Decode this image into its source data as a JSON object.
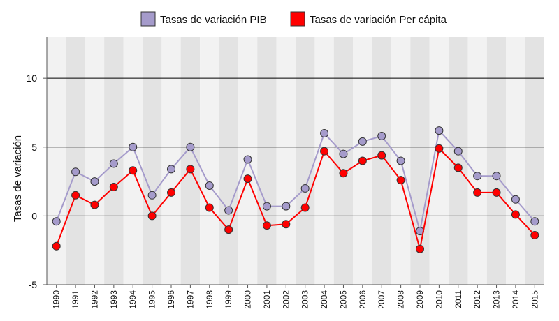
{
  "chart_data": {
    "type": "line",
    "title": "",
    "xlabel": "",
    "ylabel": "Tasas de variación",
    "ylim": [
      -5,
      13
    ],
    "yticks": [
      -5,
      0,
      5,
      10
    ],
    "grid": true,
    "legend_position": "top-center",
    "categories": [
      "1990",
      "1991",
      "1992",
      "1993",
      "1994",
      "1995",
      "1996",
      "1997",
      "1998",
      "1999",
      "2000",
      "2001",
      "2002",
      "2003",
      "2004",
      "2005",
      "2006",
      "2007",
      "2008",
      "2009",
      "2010",
      "2011",
      "2012",
      "2013",
      "2014",
      "2015"
    ],
    "series": [
      {
        "name": "Tasas de variación PIB",
        "color": "#a59bcb",
        "values": [
          -0.4,
          3.2,
          2.5,
          3.8,
          5.0,
          1.5,
          3.4,
          5.0,
          2.2,
          0.4,
          4.1,
          0.7,
          0.7,
          2.0,
          6.0,
          4.5,
          5.4,
          5.8,
          4.0,
          -1.1,
          6.2,
          4.7,
          2.9,
          2.9,
          1.2,
          -0.4
        ]
      },
      {
        "name": "Tasas de variación Per cápita",
        "color": "#ff0000",
        "values": [
          -2.2,
          1.5,
          0.8,
          2.1,
          3.3,
          0.0,
          1.7,
          3.4,
          0.6,
          -1.0,
          2.7,
          -0.7,
          -0.6,
          0.6,
          4.7,
          3.1,
          4.0,
          4.4,
          2.6,
          -2.4,
          4.9,
          3.5,
          1.7,
          1.7,
          0.1,
          -1.4
        ]
      }
    ]
  }
}
